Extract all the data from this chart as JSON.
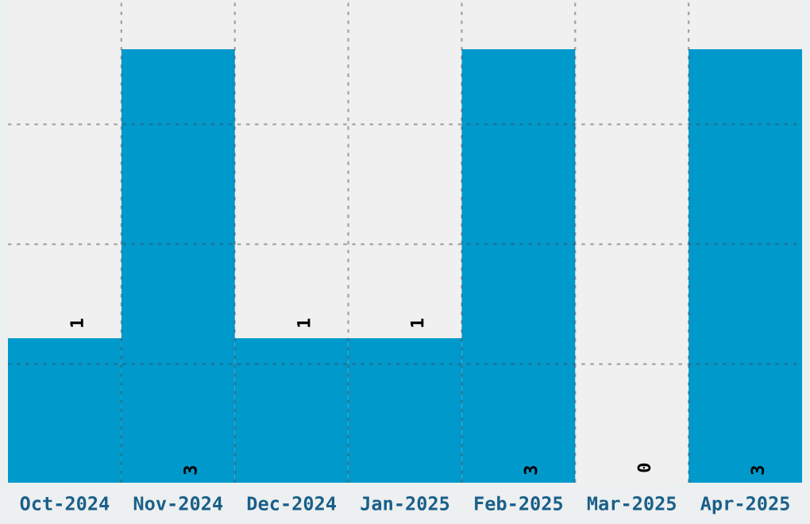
{
  "chart_data": {
    "type": "bar",
    "categories": [
      "Oct-2024",
      "Nov-2024",
      "Dec-2024",
      "Jan-2025",
      "Feb-2025",
      "Mar-2025",
      "Apr-2025"
    ],
    "values": [
      1,
      3,
      1,
      1,
      3,
      0,
      3
    ],
    "color": "#0099cc",
    "ylim": [
      0,
      3.34
    ],
    "yticks": [
      {
        "value": 0.82,
        "label": null
      },
      {
        "value": 1.65,
        "label": null
      },
      {
        "value": 2.48,
        "label": null
      }
    ],
    "tick_labels": "x",
    "data_labels": true,
    "grid": true
  }
}
